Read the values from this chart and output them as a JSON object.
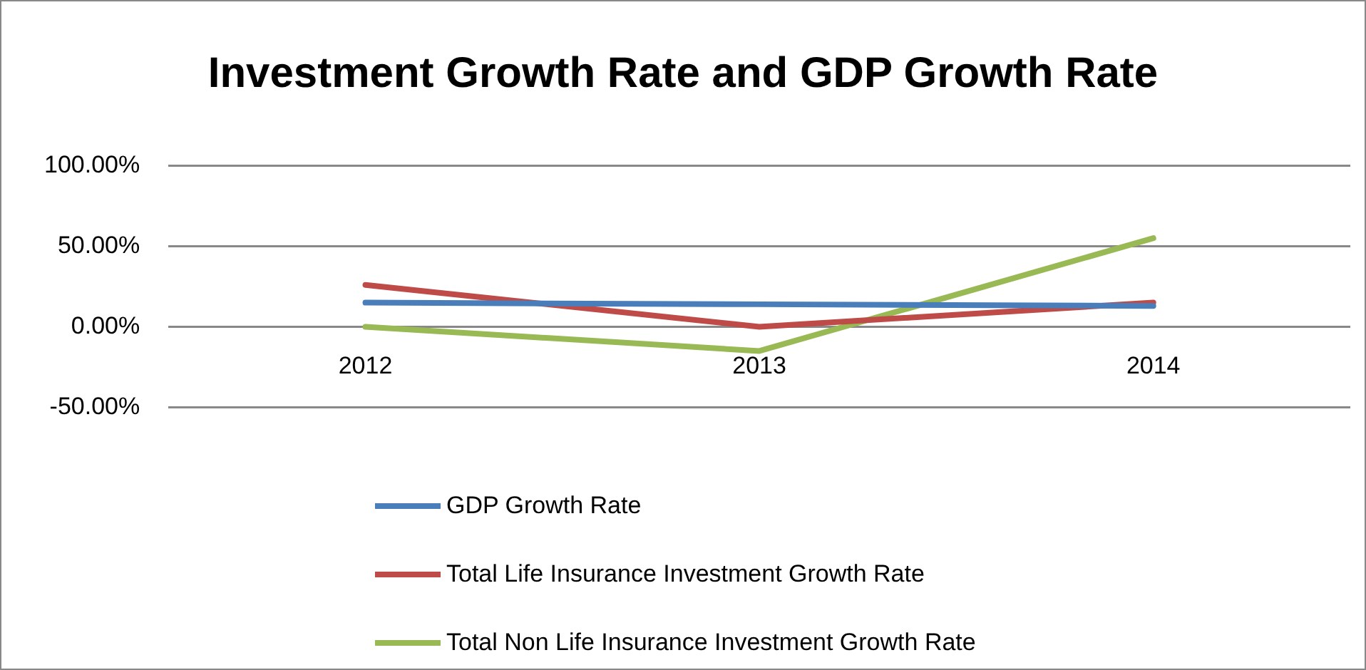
{
  "chart_data": {
    "type": "line",
    "title": "Investment Growth Rate and GDP Growth Rate",
    "categories": [
      "2012",
      "2013",
      "2014"
    ],
    "series": [
      {
        "name": "GDP Growth Rate",
        "color": "#4a7ebb",
        "values": [
          15,
          14,
          13
        ]
      },
      {
        "name": "Total Life Insurance Investment Growth Rate",
        "color": "#be4b48",
        "values": [
          26,
          0,
          15
        ]
      },
      {
        "name": "Total Non Life Insurance Investment Growth Rate",
        "color": "#98b954",
        "values": [
          0,
          -15,
          55
        ]
      }
    ],
    "ylim": [
      -50,
      100
    ],
    "yticks": [
      {
        "value": -50,
        "label": "-50.00%"
      },
      {
        "value": 0,
        "label": "0.00%"
      },
      {
        "value": 50,
        "label": "50.00%"
      },
      {
        "value": 100,
        "label": "100.00%"
      }
    ],
    "grid": "y",
    "legend": "bottom",
    "marker": "none",
    "line_style": "solid"
  }
}
